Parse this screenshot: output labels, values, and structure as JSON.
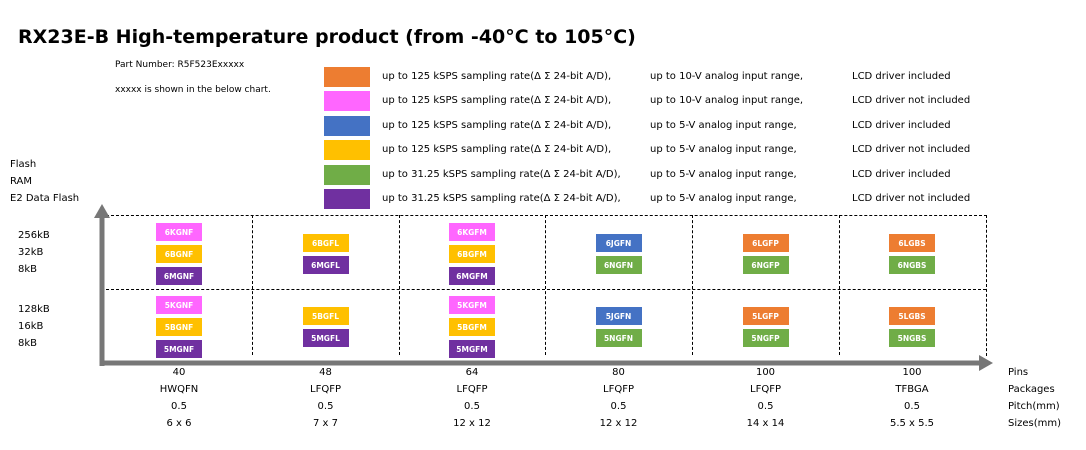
{
  "title": "RX23E-B High-temperature product (from -40°C to 105°C)",
  "part_number": "Part Number: R5F523Exxxxx",
  "part_note": "xxxxx is shown in the below chart.",
  "y_axis_labels": [
    "Flash",
    "RAM",
    "E2 Data Flash"
  ],
  "row_groups": [
    {
      "flash": "256kB",
      "ram": "32kB",
      "e2": "8kB"
    },
    {
      "flash": "128kB",
      "ram": "16kB",
      "e2": "8kB"
    }
  ],
  "colors": {
    "orange": "#ed7d31",
    "pink": "#ff66ff",
    "blue": "#4472c4",
    "yellow": "#ffc000",
    "green": "#70ad47",
    "purple": "#7030a0"
  },
  "legend": [
    {
      "color": "orange",
      "rate": "up to 125 kSPS sampling rate(Δ Σ 24-bit A/D),",
      "range": "up to 10-V analog input range,",
      "lcd": "LCD driver included"
    },
    {
      "color": "pink",
      "rate": "up to 125 kSPS sampling rate(Δ Σ 24-bit A/D),",
      "range": "up to 10-V analog input range,",
      "lcd": "LCD driver not included"
    },
    {
      "color": "blue",
      "rate": "up to 125 kSPS sampling rate(Δ Σ 24-bit A/D),",
      "range": "up to 5-V analog input range,",
      "lcd": "LCD driver included"
    },
    {
      "color": "yellow",
      "rate": "up to 125 kSPS sampling rate(Δ Σ 24-bit A/D),",
      "range": "up to 5-V analog input range,",
      "lcd": "LCD driver not included"
    },
    {
      "color": "green",
      "rate": "up to 31.25 kSPS sampling rate(Δ Σ 24-bit A/D),",
      "range": "up to 5-V analog input range,",
      "lcd": "LCD driver included"
    },
    {
      "color": "purple",
      "rate": "up to 31.25 kSPS sampling rate(Δ Σ 24-bit A/D),",
      "range": "up to 5-V analog input range,",
      "lcd": "LCD driver not included"
    }
  ],
  "columns": [
    {
      "pins": "40",
      "package": "HWQFN",
      "pitch": "0.5",
      "size": "6 x 6"
    },
    {
      "pins": "48",
      "package": "LFQFP",
      "pitch": "0.5",
      "size": "7 x 7"
    },
    {
      "pins": "64",
      "package": "LFQFP",
      "pitch": "0.5",
      "size": "12 x 12"
    },
    {
      "pins": "80",
      "package": "LFQFP",
      "pitch": "0.5",
      "size": "12 x 12"
    },
    {
      "pins": "100",
      "package": "LFQFP",
      "pitch": "0.5",
      "size": "14 x 14"
    },
    {
      "pins": "100",
      "package": "TFBGA",
      "pitch": "0.5",
      "size": "5.5 x 5.5"
    }
  ],
  "row_labels_right": [
    "Pins",
    "Packages",
    "Pitch(mm)",
    "Sizes(mm)"
  ],
  "cells": [
    [
      [
        {
          "code": "6KGNF",
          "color": "pink"
        },
        {
          "code": "6BGNF",
          "color": "yellow"
        },
        {
          "code": "6MGNF",
          "color": "purple"
        }
      ],
      [
        {
          "code": "5KGNF",
          "color": "pink"
        },
        {
          "code": "5BGNF",
          "color": "yellow"
        },
        {
          "code": "5MGNF",
          "color": "purple"
        }
      ]
    ],
    [
      [
        {
          "code": "6BGFL",
          "color": "yellow"
        },
        {
          "code": "6MGFL",
          "color": "purple"
        }
      ],
      [
        {
          "code": "5BGFL",
          "color": "yellow"
        },
        {
          "code": "5MGFL",
          "color": "purple"
        }
      ]
    ],
    [
      [
        {
          "code": "6KGFM",
          "color": "pink"
        },
        {
          "code": "6BGFM",
          "color": "yellow"
        },
        {
          "code": "6MGFM",
          "color": "purple"
        }
      ],
      [
        {
          "code": "5KGFM",
          "color": "pink"
        },
        {
          "code": "5BGFM",
          "color": "yellow"
        },
        {
          "code": "5MGFM",
          "color": "purple"
        }
      ]
    ],
    [
      [
        {
          "code": "6JGFN",
          "color": "blue"
        },
        {
          "code": "6NGFN",
          "color": "green"
        }
      ],
      [
        {
          "code": "5JGFN",
          "color": "blue"
        },
        {
          "code": "5NGFN",
          "color": "green"
        }
      ]
    ],
    [
      [
        {
          "code": "6LGFP",
          "color": "orange"
        },
        {
          "code": "6NGFP",
          "color": "green"
        }
      ],
      [
        {
          "code": "5LGFP",
          "color": "orange"
        },
        {
          "code": "5NGFP",
          "color": "green"
        }
      ]
    ],
    [
      [
        {
          "code": "6LGBS",
          "color": "orange"
        },
        {
          "code": "6NGBS",
          "color": "green"
        }
      ],
      [
        {
          "code": "5LGBS",
          "color": "orange"
        },
        {
          "code": "5NGBS",
          "color": "green"
        }
      ]
    ]
  ]
}
